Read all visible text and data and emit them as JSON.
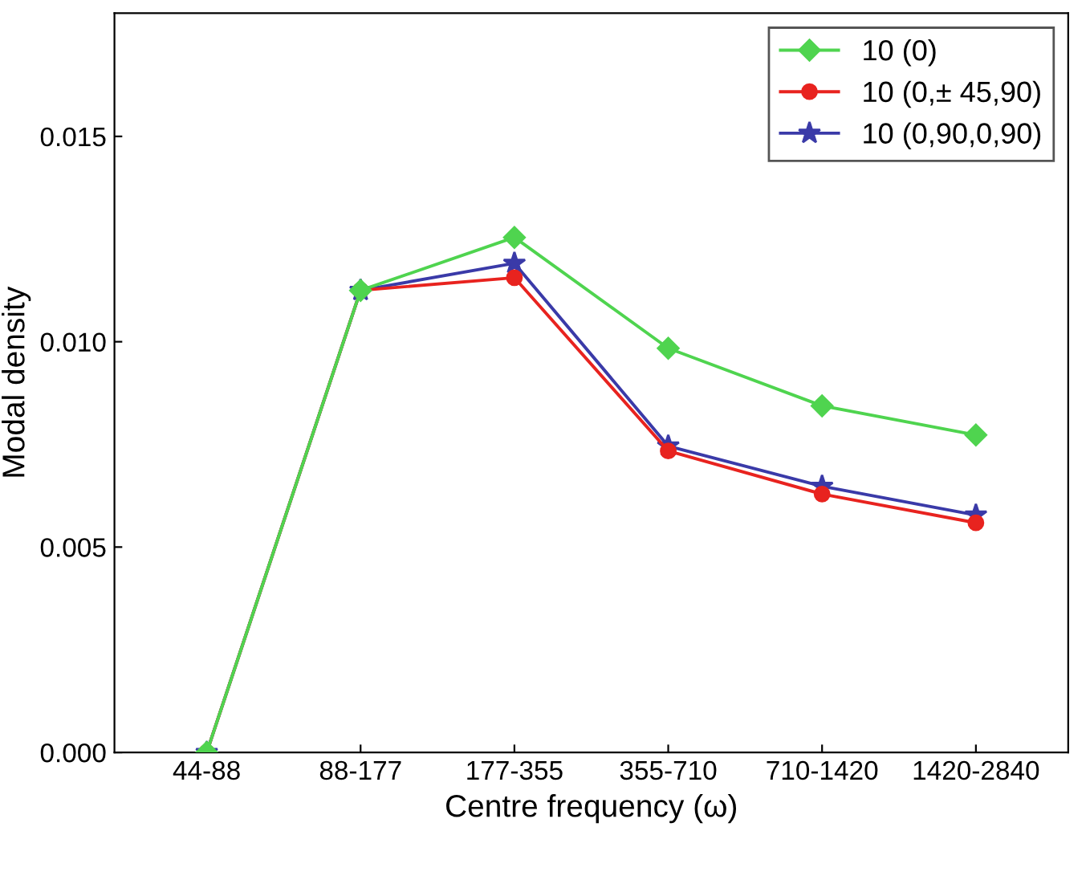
{
  "chart_data": {
    "type": "line",
    "xlabel": "Centre frequency (ω)",
    "ylabel": "Modal density",
    "categories": [
      "44-88",
      "88-177",
      "177-355",
      "355-710",
      "710-1420",
      "1420-2840"
    ],
    "series": [
      {
        "name": "10 (0)",
        "color": "#4fd44f",
        "marker": "diamond",
        "values": [
          0,
          0.01125,
          0.01254,
          0.00984,
          0.00844,
          0.00773
        ]
      },
      {
        "name": "10 (0,± 45,90)",
        "color": "#e8231f",
        "marker": "circle",
        "values": [
          0,
          0.01125,
          0.01156,
          0.00734,
          0.00629,
          0.00559
        ]
      },
      {
        "name": "10 (0,90,0,90)",
        "color": "#3a3aa8",
        "marker": "star",
        "values": [
          0,
          0.01125,
          0.01191,
          0.00746,
          0.00648,
          0.00578
        ]
      }
    ],
    "ylim": [
      0,
      0.018
    ],
    "yticks": [
      {
        "value": 0,
        "label": "0.000"
      },
      {
        "value": 0.005,
        "label": "0.005"
      },
      {
        "value": 0.01,
        "label": "0.010"
      },
      {
        "value": 0.015,
        "label": "0.015"
      }
    ],
    "grid": false,
    "legend": "top right",
    "line_style": "solid"
  }
}
